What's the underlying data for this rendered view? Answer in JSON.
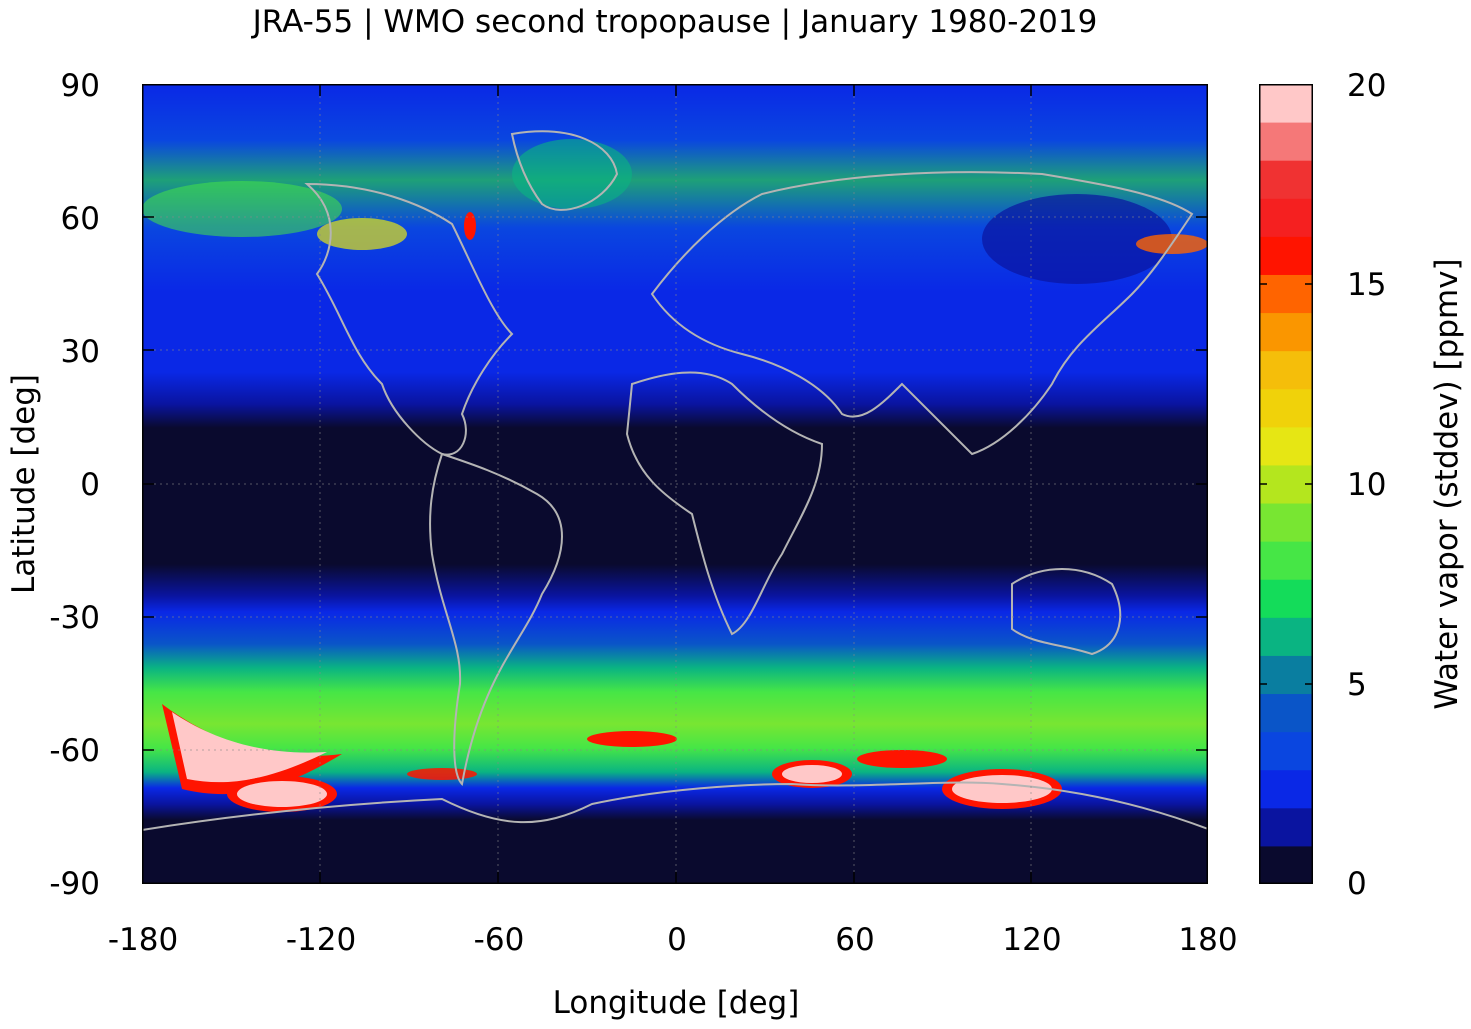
{
  "title": "JRA-55 | WMO second tropopause | January 1980-2019",
  "axes": {
    "xlabel": "Longitude [deg]",
    "ylabel": "Latitude [deg]",
    "xlim": [
      -180,
      180
    ],
    "ylim": [
      -90,
      90
    ],
    "xticks": [
      "-180",
      "-120",
      "-60",
      "0",
      "60",
      "120",
      "180"
    ],
    "yticks": [
      "90",
      "60",
      "30",
      "0",
      "-30",
      "-60",
      "-90"
    ]
  },
  "colorbar": {
    "label": "Water vapor (stddev) [ppmv]",
    "range": [
      0,
      20
    ],
    "ticks": [
      "20",
      "15",
      "10",
      "5",
      "0"
    ],
    "colors": [
      "#0a0a2e",
      "#0a14a0",
      "#0a28e6",
      "#0a46e0",
      "#0a55c8",
      "#0a7ea0",
      "#0ab482",
      "#14dc5a",
      "#46e646",
      "#78e632",
      "#b4e61e",
      "#e6e614",
      "#f0d20a",
      "#f5be0a",
      "#fa9600",
      "#ff6400",
      "#ff1400",
      "#f52020",
      "#f03232",
      "#f57878",
      "#ffc8c8"
    ]
  },
  "colors": {
    "tropics": "#0a0a2e",
    "coastline": "#b4b4b4",
    "grid": "#888888"
  }
}
